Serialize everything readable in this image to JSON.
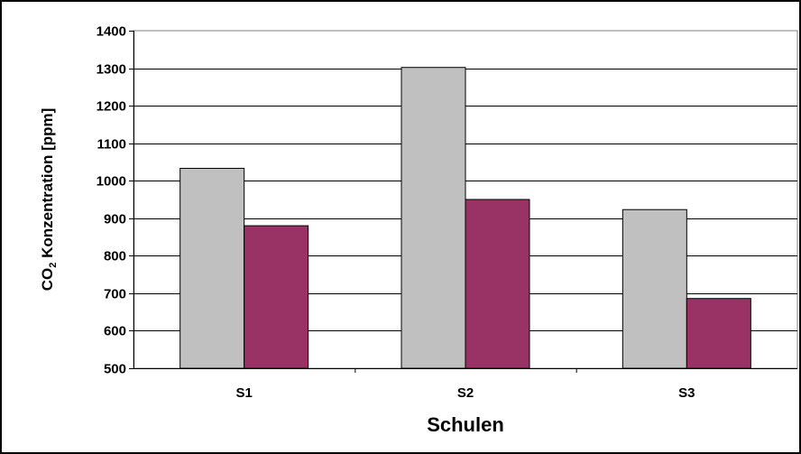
{
  "chart_data": {
    "type": "bar",
    "title": "",
    "xlabel": "Schulen",
    "ylabel": "CO2 Konzentration [ppm]",
    "ylabel_parts": {
      "prefix": "CO",
      "subscript": "2",
      "suffix": " Konzentration [ppm]"
    },
    "categories": [
      "S1",
      "S2",
      "S3"
    ],
    "series": [
      {
        "values": [
          1033,
          1302,
          923
        ],
        "color": "#c0c0c0"
      },
      {
        "values": [
          880,
          950,
          686
        ],
        "color": "#993366"
      }
    ],
    "ylim": [
      500,
      1400
    ],
    "yticks": [
      500,
      600,
      700,
      800,
      900,
      1000,
      1100,
      1200,
      1300,
      1400
    ],
    "grid": true,
    "legend": "none"
  }
}
